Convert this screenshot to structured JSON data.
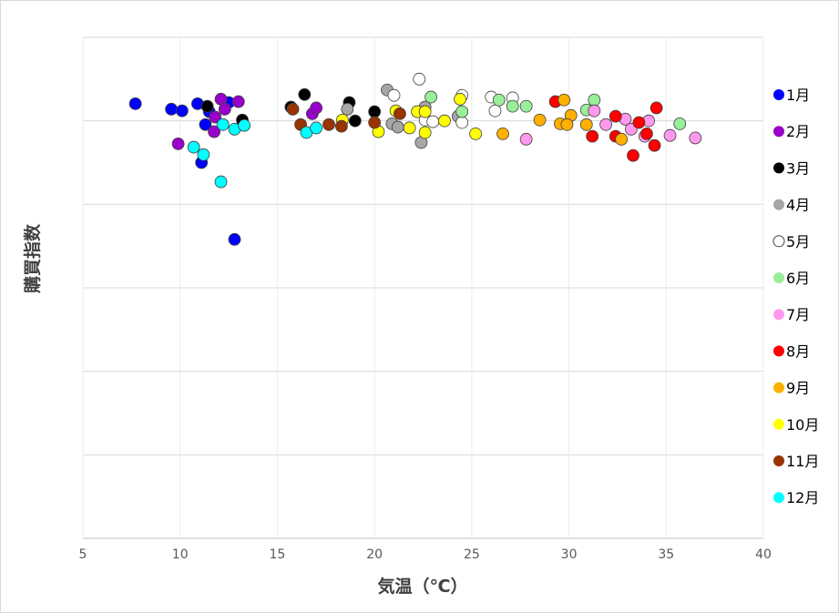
{
  "chart_data": {
    "type": "scatter",
    "title": "",
    "xlabel": "気温（℃）",
    "ylabel": "購買指数",
    "xlim": [
      5,
      40
    ],
    "ylim": [
      0,
      120
    ],
    "xticks": [
      5,
      10,
      15,
      20,
      25,
      30,
      35,
      40
    ],
    "yticks": [
      0,
      20,
      40,
      60,
      80,
      100,
      120
    ],
    "show_y_tick_labels": false,
    "grid": true,
    "legend_position": "right",
    "series": [
      {
        "name": "1月",
        "color": "#0000ff",
        "points": [
          [
            7.7,
            104.1
          ],
          [
            9.55,
            102.8
          ],
          [
            10.1,
            102.4
          ],
          [
            10.9,
            104.1
          ],
          [
            11.5,
            102.2
          ],
          [
            11.3,
            99.1
          ],
          [
            11.1,
            90.0
          ],
          [
            12.5,
            104.4
          ],
          [
            12.8,
            71.6
          ]
        ]
      },
      {
        "name": "2月",
        "color": "#9900cc",
        "points": [
          [
            12.1,
            105.2
          ],
          [
            13.0,
            104.6
          ],
          [
            12.3,
            102.8
          ],
          [
            11.8,
            100.9
          ],
          [
            11.75,
            97.4
          ],
          [
            9.9,
            94.5
          ],
          [
            16.8,
            101.7
          ],
          [
            17.0,
            103.1
          ]
        ]
      },
      {
        "name": "3月",
        "color": "#000000",
        "points": [
          [
            11.4,
            103.5
          ],
          [
            13.2,
            100.2
          ],
          [
            16.4,
            106.3
          ],
          [
            15.7,
            103.3
          ],
          [
            18.7,
            104.4
          ],
          [
            19.0,
            100.0
          ],
          [
            20.0,
            102.2
          ]
        ]
      },
      {
        "name": "4月",
        "color": "#a6a6a6",
        "points": [
          [
            20.65,
            107.4
          ],
          [
            20.9,
            99.3
          ],
          [
            21.2,
            98.5
          ],
          [
            22.4,
            94.8
          ],
          [
            22.6,
            103.3
          ],
          [
            24.3,
            101.1
          ],
          [
            18.6,
            102.8
          ]
        ]
      },
      {
        "name": "5月",
        "color": "#ffffff",
        "points": [
          [
            22.3,
            110.0
          ],
          [
            21.0,
            106.1
          ],
          [
            22.6,
            100.2
          ],
          [
            23.0,
            99.8
          ],
          [
            24.5,
            106.1
          ],
          [
            24.5,
            99.6
          ],
          [
            26.0,
            105.7
          ],
          [
            26.2,
            102.4
          ],
          [
            27.1,
            105.5
          ]
        ]
      },
      {
        "name": "6月",
        "color": "#99ee99",
        "points": [
          [
            22.9,
            105.7
          ],
          [
            24.5,
            102.2
          ],
          [
            26.4,
            105.0
          ],
          [
            27.1,
            103.5
          ],
          [
            27.8,
            103.5
          ],
          [
            31.3,
            105.0
          ],
          [
            30.9,
            102.6
          ],
          [
            35.7,
            99.3
          ]
        ]
      },
      {
        "name": "7月",
        "color": "#ff99ee",
        "points": [
          [
            27.8,
            95.6
          ],
          [
            31.3,
            102.4
          ],
          [
            31.9,
            99.1
          ],
          [
            32.9,
            100.4
          ],
          [
            33.2,
            98.0
          ],
          [
            34.1,
            100.0
          ],
          [
            33.9,
            96.3
          ],
          [
            35.2,
            96.5
          ],
          [
            36.5,
            95.9
          ]
        ]
      },
      {
        "name": "8月",
        "color": "#ff0000",
        "points": [
          [
            29.3,
            104.6
          ],
          [
            31.2,
            96.3
          ],
          [
            32.4,
            101.1
          ],
          [
            32.4,
            96.3
          ],
          [
            33.6,
            99.6
          ],
          [
            34.0,
            96.9
          ],
          [
            34.5,
            103.1
          ],
          [
            34.4,
            94.1
          ],
          [
            33.3,
            91.7
          ]
        ]
      },
      {
        "name": "9月",
        "color": "#ffb000",
        "points": [
          [
            28.5,
            100.2
          ],
          [
            26.6,
            96.9
          ],
          [
            29.75,
            105.0
          ],
          [
            30.1,
            101.3
          ],
          [
            29.55,
            99.3
          ],
          [
            29.9,
            99.1
          ],
          [
            30.9,
            99.1
          ],
          [
            32.7,
            95.6
          ]
        ]
      },
      {
        "name": "10月",
        "color": "#ffff00",
        "points": [
          [
            20.2,
            97.4
          ],
          [
            21.1,
            102.4
          ],
          [
            21.8,
            98.3
          ],
          [
            22.2,
            102.2
          ],
          [
            22.6,
            102.2
          ],
          [
            22.6,
            97.2
          ],
          [
            23.6,
            100.0
          ],
          [
            24.4,
            105.2
          ],
          [
            25.2,
            96.9
          ],
          [
            18.35,
            100.2
          ]
        ]
      },
      {
        "name": "11月",
        "color": "#993300",
        "points": [
          [
            15.8,
            102.8
          ],
          [
            16.2,
            99.1
          ],
          [
            17.65,
            99.1
          ],
          [
            18.3,
            98.7
          ],
          [
            20.0,
            99.6
          ],
          [
            21.3,
            101.7
          ]
        ]
      },
      {
        "name": "12月",
        "color": "#00ffff",
        "points": [
          [
            12.2,
            99.1
          ],
          [
            12.8,
            98.0
          ],
          [
            13.3,
            98.9
          ],
          [
            10.7,
            93.7
          ],
          [
            11.2,
            91.9
          ],
          [
            12.1,
            85.4
          ],
          [
            16.5,
            97.2
          ],
          [
            17.0,
            98.3
          ]
        ]
      }
    ]
  }
}
